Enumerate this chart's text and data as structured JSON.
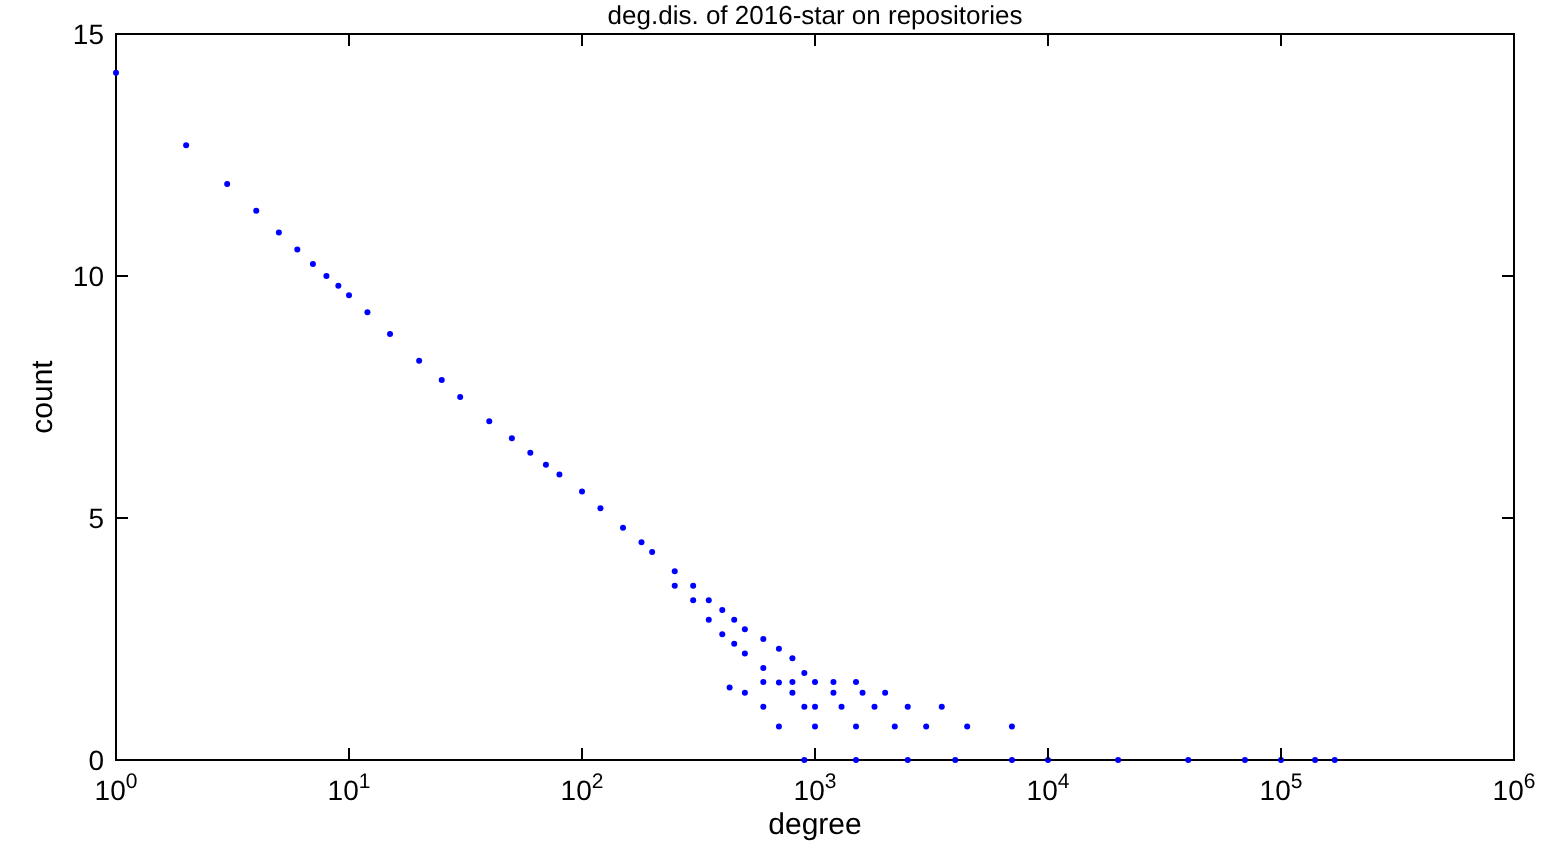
{
  "chart_data": {
    "type": "scatter",
    "title": "deg.dis. of 2016-star on repositories",
    "xlabel": "degree",
    "ylabel": "count",
    "log": "x",
    "xlim": [
      1,
      1000000
    ],
    "ylim": [
      0,
      15
    ],
    "xticks": [
      {
        "value": 1,
        "label": "10$^{0}$"
      },
      {
        "value": 10,
        "label": "10$^{1}$"
      },
      {
        "value": 100,
        "label": "10$^{2}$"
      },
      {
        "value": 1000,
        "label": "10$^{3}$"
      },
      {
        "value": 10000,
        "label": "10$^{4}$"
      },
      {
        "value": 100000,
        "label": "10$^{5}$"
      },
      {
        "value": 1000000,
        "label": "10$^{6}$"
      }
    ],
    "yticks": [
      0,
      5,
      10,
      15
    ],
    "grid": false,
    "marker": "circle",
    "series": [
      {
        "color": "#0000ff",
        "x": [
          1,
          2,
          3,
          4,
          5,
          6,
          7,
          8,
          9,
          10,
          12,
          15,
          20,
          25,
          30,
          40,
          50,
          60,
          70,
          80,
          100,
          120,
          150,
          180,
          200,
          250,
          250,
          300,
          300,
          350,
          350,
          400,
          400,
          450,
          450,
          500,
          500,
          600,
          600,
          700,
          700,
          800,
          430,
          900,
          1000
        ],
        "values": [
          14.2,
          12.7,
          11.9,
          11.35,
          10.9,
          10.55,
          10.25,
          10.0,
          9.8,
          9.6,
          9.25,
          8.8,
          8.25,
          7.85,
          7.5,
          7.0,
          6.65,
          6.35,
          6.1,
          5.9,
          5.55,
          5.2,
          4.8,
          4.5,
          4.3,
          3.9,
          3.6,
          3.6,
          3.3,
          3.3,
          2.9,
          3.1,
          2.6,
          2.9,
          2.4,
          2.7,
          2.2,
          2.5,
          1.9,
          2.3,
          1.6,
          2.1,
          1.5,
          1.8,
          1.1
        ]
      },
      {
        "color": "#0000ff",
        "x": [
          600,
          800,
          1000,
          1200,
          1500,
          500,
          800,
          1200,
          1600,
          2000,
          600,
          900,
          1300,
          1800,
          2500,
          3500,
          700,
          1000,
          1500,
          2200,
          3000,
          4500,
          7000,
          900,
          1500,
          2500,
          4000,
          7000,
          10000,
          20000,
          40000,
          70000,
          100000,
          140000,
          170000
        ],
        "values": [
          1.61,
          1.61,
          1.61,
          1.61,
          1.61,
          1.39,
          1.39,
          1.39,
          1.39,
          1.39,
          1.1,
          1.1,
          1.1,
          1.1,
          1.1,
          1.1,
          0.69,
          0.69,
          0.69,
          0.69,
          0.69,
          0.69,
          0.69,
          0,
          0,
          0,
          0,
          0,
          0,
          0,
          0,
          0,
          0,
          0,
          0
        ]
      }
    ]
  }
}
